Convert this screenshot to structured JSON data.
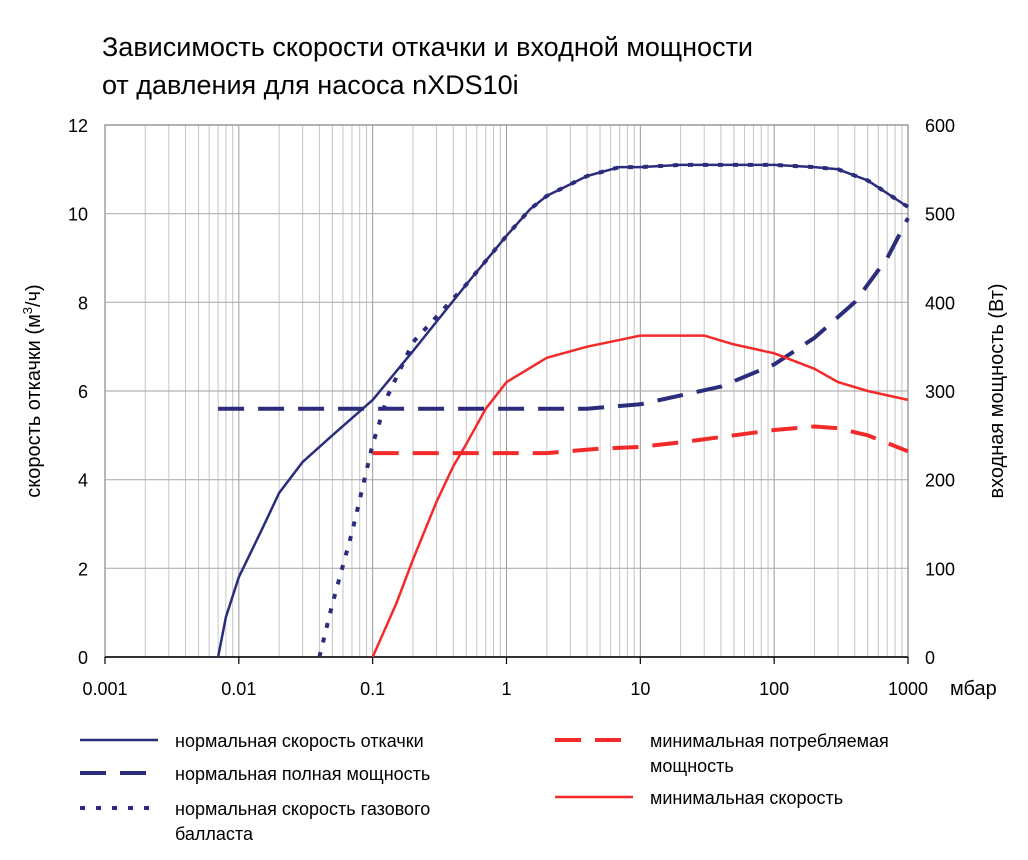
{
  "chart_data": {
    "type": "line",
    "title_lines": [
      "Зависимость скорости откачки и входной мощности",
      "от давления для насоса nXDS10i"
    ],
    "xlabel": "мбар",
    "ylabel_left": "скорость откачки (м³/ч)",
    "ylabel_left_parts": [
      "скорость откачки (м",
      "3",
      "/ч)"
    ],
    "ylabel_right": "входная мощность (Вт)",
    "x_scale": "log",
    "xlim": [
      0.001,
      1000
    ],
    "ylim_left": [
      0,
      12
    ],
    "ylim_right": [
      0,
      600
    ],
    "x_ticks": [
      0.001,
      0.01,
      0.1,
      1,
      10,
      100,
      1000
    ],
    "x_tick_labels": [
      "0.001",
      "0.01",
      "0.1",
      "1",
      "10",
      "100",
      "1000"
    ],
    "y_left_ticks": [
      "0",
      "2",
      "4",
      "6",
      "8",
      "10",
      "12"
    ],
    "y_right_ticks": [
      "0",
      "100",
      "200",
      "300",
      "400",
      "500",
      "600"
    ],
    "grid": true,
    "series": [
      {
        "name": "нормальная скорость откачки",
        "axis": "left",
        "color": "#2b2d7c",
        "style": "solid",
        "x": [
          0.007,
          0.008,
          0.01,
          0.015,
          0.02,
          0.03,
          0.05,
          0.1,
          0.2,
          0.5,
          1,
          1.5,
          2,
          4,
          7,
          10,
          20,
          50,
          100,
          200,
          300,
          500,
          1000
        ],
        "y": [
          0,
          0.9,
          1.8,
          2.9,
          3.7,
          4.4,
          5.0,
          5.8,
          6.9,
          8.4,
          9.5,
          10.1,
          10.4,
          10.85,
          11.05,
          11.05,
          11.1,
          11.1,
          11.1,
          11.05,
          11.0,
          10.75,
          10.15
        ]
      },
      {
        "name": "нормальная полная мощность",
        "axis": "right",
        "color": "#2b2d7c",
        "style": "dash",
        "x": [
          0.007,
          1,
          4,
          10,
          20,
          40,
          100,
          200,
          400,
          700,
          1000
        ],
        "y": [
          280,
          280,
          280,
          285,
          295,
          305,
          330,
          360,
          400,
          450,
          495
        ]
      },
      {
        "name": "нормальная скорость газового балласта",
        "axis": "left",
        "color": "#2b2d7c",
        "style": "dot",
        "x": [
          0.04,
          0.05,
          0.07,
          0.1,
          0.13,
          0.2,
          0.5,
          1,
          1.5,
          2,
          4,
          7,
          10,
          20,
          50,
          100,
          200,
          300,
          500,
          1000
        ],
        "y": [
          0,
          1.2,
          2.8,
          4.8,
          5.9,
          7.1,
          8.4,
          9.5,
          10.1,
          10.4,
          10.85,
          11.05,
          11.05,
          11.1,
          11.1,
          11.1,
          11.05,
          11.0,
          10.75,
          10.15
        ]
      },
      {
        "name": "минимальная потребляемая мощность",
        "axis": "right",
        "color": "#f42a2a",
        "style": "dash",
        "x": [
          0.1,
          2,
          5,
          10,
          20,
          50,
          100,
          200,
          300,
          500,
          1000
        ],
        "y": [
          230,
          230,
          235,
          237,
          242,
          250,
          256,
          260,
          258,
          250,
          232
        ]
      },
      {
        "name": "минимальная скорость",
        "axis": "left",
        "color": "#f42a2a",
        "style": "solid",
        "x": [
          0.1,
          0.15,
          0.2,
          0.3,
          0.4,
          0.5,
          0.7,
          1,
          2,
          4,
          10,
          20,
          30,
          50,
          100,
          200,
          300,
          500,
          1000
        ],
        "y": [
          0,
          1.2,
          2.2,
          3.5,
          4.3,
          4.8,
          5.6,
          6.2,
          6.75,
          7.0,
          7.25,
          7.25,
          7.25,
          7.05,
          6.85,
          6.5,
          6.2,
          6.0,
          5.8
        ]
      }
    ],
    "legend": {
      "placement": "bottom",
      "entries": [
        {
          "label_lines": [
            "нормальная скорость откачки"
          ],
          "series": 0
        },
        {
          "label_lines": [
            "нормальная полная мощность"
          ],
          "series": 1
        },
        {
          "label_lines": [
            "нормальная скорость газового",
            "балласта"
          ],
          "series": 2
        },
        {
          "label_lines": [
            "минимальная потребляемая",
            "мощность"
          ],
          "series": 3
        },
        {
          "label_lines": [
            "минимальная скорость"
          ],
          "series": 4
        }
      ]
    }
  }
}
